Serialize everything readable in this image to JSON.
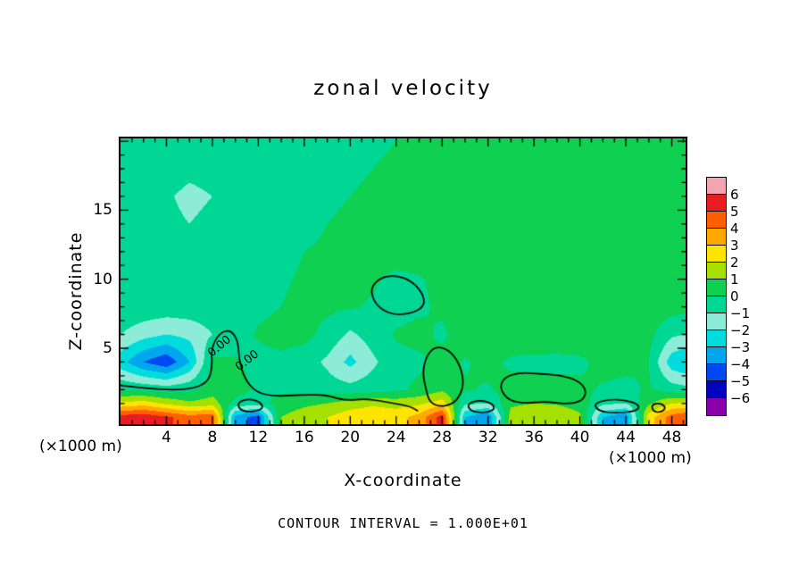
{
  "annotations": {
    "contour_interval_text": "CONTOUR INTERVAL = 1.000E+01",
    "x_unit_left": "(×1000 m)",
    "x_unit_right": "(×1000 m)"
  },
  "chart_data": {
    "type": "heatmap",
    "title": "zonal velocity",
    "xlabel": "X-coordinate",
    "ylabel": "Z-coordinate",
    "x_unit": "(×1000 m)",
    "contour_interval": 10,
    "xlim": [
      0,
      49.2
    ],
    "zlim_display": [
      -0.5,
      20.2
    ],
    "x_major_ticks": [
      4,
      8,
      12,
      16,
      20,
      24,
      28,
      32,
      36,
      40,
      44,
      48
    ],
    "x_minor_step": 1,
    "z_major_ticks": [
      5,
      10,
      15
    ],
    "z_minor_step": 1,
    "grid_x": [
      0,
      2,
      4,
      6,
      8,
      10,
      12,
      14,
      16,
      18,
      20,
      22,
      24,
      26,
      28,
      30,
      32,
      34,
      36,
      38,
      40,
      42,
      44,
      46,
      48,
      50
    ],
    "grid_z": [
      20,
      18,
      16,
      14,
      12,
      10,
      8,
      6,
      4,
      2,
      1,
      0
    ],
    "values": [
      [
        -0.3,
        -0.4,
        -0.4,
        -0.5,
        -0.5,
        -0.4,
        -0.4,
        -0.3,
        -0.3,
        -0.2,
        -0.2,
        -0.1,
        0,
        0.1,
        0.2,
        0.3,
        0.3,
        0.3,
        0.3,
        0.3,
        0.3,
        0.2,
        0.2,
        0.3,
        0.3,
        0.3
      ],
      [
        -0.4,
        -0.5,
        -0.6,
        -0.8,
        -0.7,
        -0.6,
        -0.5,
        -0.4,
        -0.3,
        -0.2,
        -0.1,
        0,
        0.1,
        0.2,
        0.3,
        0.4,
        0.4,
        0.5,
        0.4,
        0.4,
        0.4,
        0.3,
        0.3,
        0.3,
        0.4,
        0.4
      ],
      [
        -0.5,
        -0.6,
        -0.9,
        -1.2,
        -1.0,
        -0.8,
        -0.6,
        -0.4,
        -0.3,
        -0.1,
        0,
        0.1,
        0.2,
        0.3,
        0.5,
        0.5,
        0.6,
        0.6,
        0.5,
        0.5,
        0.4,
        0.4,
        0.4,
        0.4,
        0.4,
        0.4
      ],
      [
        -0.5,
        -0.6,
        -0.8,
        -1.0,
        -0.8,
        -0.7,
        -0.5,
        -0.3,
        -0.2,
        0,
        0.1,
        0.2,
        0.3,
        0.5,
        0.6,
        0.6,
        0.7,
        0.7,
        0.6,
        0.6,
        0.5,
        0.5,
        0.4,
        0.4,
        0.5,
        0.5
      ],
      [
        -0.4,
        -0.5,
        -0.6,
        -0.7,
        -0.6,
        -0.5,
        -0.4,
        -0.2,
        0,
        0.1,
        0.2,
        0.3,
        0.4,
        0.5,
        0.7,
        0.7,
        0.8,
        0.7,
        0.7,
        0.6,
        0.6,
        0.5,
        0.5,
        0.5,
        0.5,
        0.5
      ],
      [
        -0.3,
        -0.4,
        -0.5,
        -0.5,
        -0.5,
        -0.4,
        -0.2,
        -0.1,
        0.1,
        0.2,
        0.2,
        0.1,
        -0.2,
        -0.1,
        0.3,
        0.6,
        0.8,
        0.8,
        0.7,
        0.7,
        0.6,
        0.6,
        0.5,
        0.5,
        0.5,
        0.5
      ],
      [
        -0.2,
        -0.3,
        -0.4,
        -0.4,
        -0.4,
        -0.3,
        -0.2,
        0,
        0.2,
        0.2,
        0.1,
        -0.1,
        -0.4,
        -0.2,
        0.2,
        0.6,
        0.8,
        0.8,
        0.8,
        0.7,
        0.7,
        0.6,
        0.6,
        0.5,
        0.4,
        0.3
      ],
      [
        -1.0,
        -1.6,
        -2.0,
        -1.7,
        -1.0,
        -0.4,
        0.1,
        0.3,
        0.3,
        -0.3,
        -1.2,
        -0.5,
        0.1,
        0.3,
        -0.2,
        0.6,
        0.8,
        0.8,
        0.8,
        0.7,
        0.7,
        0.6,
        0.5,
        0.3,
        -0.8,
        -1.2
      ],
      [
        -2.6,
        -4.0,
        -4.8,
        -3.0,
        0.2,
        0.1,
        -0.3,
        -0.2,
        -0.5,
        -1.2,
        -2.3,
        -1.2,
        -0.3,
        -0.2,
        0.4,
        -0.1,
        0.3,
        -0.2,
        -0.3,
        -0.3,
        -0.2,
        0.3,
        0.2,
        0,
        -2.6,
        -3.2
      ],
      [
        -0.1,
        -0.2,
        -0.4,
        -0.2,
        0.5,
        0.4,
        -0.2,
        -0.2,
        -0.3,
        -0.5,
        -0.6,
        -0.4,
        -0.2,
        0.2,
        0.8,
        0.1,
        -0.1,
        0.4,
        0.5,
        0.4,
        0.2,
        -0.1,
        -0.2,
        0.1,
        -0.5,
        -0.8
      ],
      [
        2.2,
        2.5,
        1.8,
        1.2,
        1.5,
        -0.3,
        -0.5,
        0.5,
        0.8,
        1.0,
        1.5,
        1.8,
        1.6,
        1.8,
        2.5,
        -0.8,
        -1.0,
        0.8,
        1.0,
        0.9,
        0.6,
        -0.8,
        -1.0,
        0.8,
        2.0,
        2.2
      ],
      [
        5.5,
        5.8,
        5.2,
        4.5,
        4.8,
        -3.5,
        -4.5,
        1.0,
        1.5,
        2.0,
        2.6,
        2.8,
        2.6,
        3.4,
        5.5,
        -3.0,
        -4.0,
        1.5,
        2.0,
        1.8,
        1.2,
        -3.0,
        -3.8,
        2.5,
        4.5,
        5.2
      ]
    ],
    "colorbar": {
      "levels": [
        6,
        5,
        4,
        3,
        2,
        1,
        0,
        -1,
        -2,
        -3,
        -4,
        -5,
        -6
      ],
      "band_colors": [
        "#f2a4b0",
        "#e81c23",
        "#ff5f00",
        "#ffa800",
        "#ffe400",
        "#a6e000",
        "#0fd050",
        "#00d795",
        "#8cecd8",
        "#00dcdc",
        "#00a6ee",
        "#0049f0",
        "#0004be",
        "#8a00a8"
      ]
    },
    "contour_lines": [
      {
        "closed": false,
        "points": [
          [
            0,
            2.3
          ],
          [
            3,
            2.0
          ],
          [
            6,
            2.0
          ],
          [
            7.6,
            2.5
          ],
          [
            8.0,
            3.6
          ],
          [
            7.9,
            5.0
          ],
          [
            8.6,
            6.1
          ],
          [
            9.6,
            6.35
          ],
          [
            10.25,
            5.5
          ],
          [
            10.3,
            4.2
          ],
          [
            10.8,
            2.8
          ],
          [
            11.8,
            1.8
          ],
          [
            13.5,
            1.5
          ],
          [
            16,
            1.65
          ],
          [
            18,
            1.6
          ],
          [
            19.5,
            1.2
          ],
          [
            21.5,
            1.35
          ],
          [
            23.5,
            1.05
          ],
          [
            25.2,
            0.8
          ],
          [
            25.9,
            0.45
          ]
        ]
      },
      {
        "closed": true,
        "points": [
          [
            27.4,
            5.15
          ],
          [
            26.6,
            4.4
          ],
          [
            26.3,
            3.2
          ],
          [
            26.6,
            2.0
          ],
          [
            26.9,
            1.1
          ],
          [
            27.8,
            0.75
          ],
          [
            28.9,
            0.95
          ],
          [
            29.6,
            1.6
          ],
          [
            29.9,
            2.6
          ],
          [
            29.5,
            3.9
          ],
          [
            28.6,
            4.9
          ]
        ]
      },
      {
        "closed": true,
        "points": [
          [
            22.0,
            8.5
          ],
          [
            21.8,
            9.4
          ],
          [
            22.6,
            10.1
          ],
          [
            23.9,
            10.3
          ],
          [
            25.3,
            9.9
          ],
          [
            26.3,
            9.0
          ],
          [
            26.5,
            8.1
          ],
          [
            25.5,
            7.55
          ],
          [
            23.9,
            7.4
          ],
          [
            22.7,
            7.8
          ]
        ]
      },
      {
        "closed": true,
        "points": [
          [
            33.0,
            2.1
          ],
          [
            33.4,
            2.9
          ],
          [
            34.8,
            3.25
          ],
          [
            36.5,
            3.15
          ],
          [
            38.3,
            3.05
          ],
          [
            39.9,
            2.65
          ],
          [
            40.6,
            1.9
          ],
          [
            40.2,
            1.15
          ],
          [
            38.8,
            0.95
          ],
          [
            37.0,
            1.15
          ],
          [
            35.3,
            1.0
          ],
          [
            33.8,
            1.2
          ]
        ]
      },
      {
        "closed": true,
        "points": [
          [
            10.2,
            1.1
          ],
          [
            11.2,
            1.35
          ],
          [
            12.2,
            1.1
          ],
          [
            12.45,
            0.6
          ],
          [
            11.3,
            0.35
          ],
          [
            10.35,
            0.55
          ]
        ]
      },
      {
        "closed": true,
        "points": [
          [
            30.2,
            1.0
          ],
          [
            31.3,
            1.25
          ],
          [
            32.4,
            1.0
          ],
          [
            32.6,
            0.5
          ],
          [
            31.4,
            0.3
          ],
          [
            30.4,
            0.5
          ]
        ]
      },
      {
        "closed": true,
        "points": [
          [
            41.2,
            1.0
          ],
          [
            42.5,
            1.3
          ],
          [
            44.0,
            1.25
          ],
          [
            45.2,
            0.9
          ],
          [
            45.0,
            0.45
          ],
          [
            43.0,
            0.3
          ],
          [
            41.6,
            0.45
          ]
        ]
      },
      {
        "closed": true,
        "points": [
          [
            46.2,
            0.9
          ],
          [
            47.0,
            1.05
          ],
          [
            47.5,
            0.7
          ],
          [
            47.1,
            0.35
          ],
          [
            46.4,
            0.4
          ]
        ]
      }
    ],
    "contour_labels": [
      {
        "text": "0.00",
        "x": 8.6,
        "z": 5.1,
        "angle": -40
      },
      {
        "text": "0.00",
        "x": 11.0,
        "z": 4.1,
        "angle": -38
      }
    ]
  }
}
